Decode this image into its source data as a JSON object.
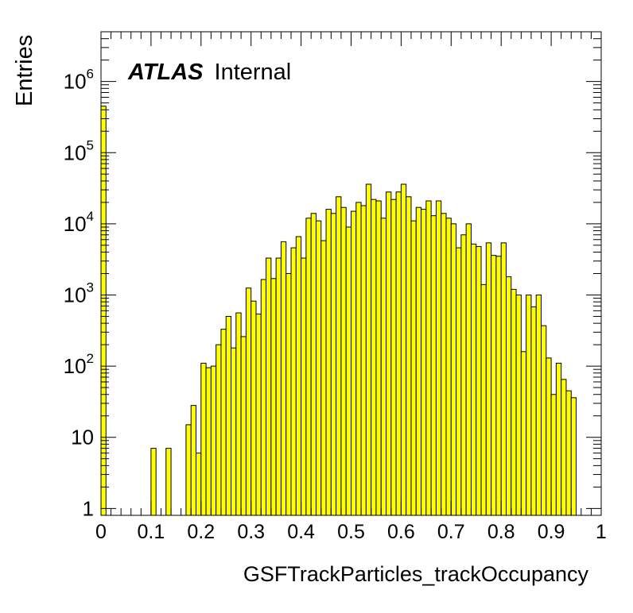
{
  "chart_data": {
    "type": "histogram",
    "title": "",
    "xlabel": "GSFTrackParticles_trackOccupancy",
    "ylabel": "Entries",
    "xlim": [
      0,
      1
    ],
    "ylim": [
      0.8,
      5000000
    ],
    "yscale": "log",
    "grid": false,
    "legend": "none",
    "annotation": {
      "bold": "ATLAS",
      "normal": "Internal"
    },
    "x_ticks": [
      {
        "value": 0,
        "label": "0"
      },
      {
        "value": 0.1,
        "label": "0.1"
      },
      {
        "value": 0.2,
        "label": "0.2"
      },
      {
        "value": 0.3,
        "label": "0.3"
      },
      {
        "value": 0.4,
        "label": "0.4"
      },
      {
        "value": 0.5,
        "label": "0.5"
      },
      {
        "value": 0.6,
        "label": "0.6"
      },
      {
        "value": 0.7,
        "label": "0.7"
      },
      {
        "value": 0.8,
        "label": "0.8"
      },
      {
        "value": 0.9,
        "label": "0.9"
      },
      {
        "value": 1,
        "label": "1"
      }
    ],
    "y_ticks": [
      {
        "value": 1,
        "base": "1",
        "exp": ""
      },
      {
        "value": 10,
        "base": "10",
        "exp": ""
      },
      {
        "value": 100,
        "base": "10",
        "exp": "2"
      },
      {
        "value": 1000,
        "base": "10",
        "exp": "3"
      },
      {
        "value": 10000,
        "base": "10",
        "exp": "4"
      },
      {
        "value": 100000,
        "base": "10",
        "exp": "5"
      },
      {
        "value": 1000000,
        "base": "10",
        "exp": "6"
      }
    ],
    "bin_width": 0.01,
    "bins": [
      [
        0.0,
        450000
      ],
      [
        0.1,
        7
      ],
      [
        0.13,
        7
      ],
      [
        0.17,
        15
      ],
      [
        0.18,
        28
      ],
      [
        0.19,
        6
      ],
      [
        0.2,
        110
      ],
      [
        0.21,
        95
      ],
      [
        0.22,
        100
      ],
      [
        0.23,
        200
      ],
      [
        0.24,
        330
      ],
      [
        0.25,
        500
      ],
      [
        0.26,
        180
      ],
      [
        0.27,
        560
      ],
      [
        0.28,
        260
      ],
      [
        0.29,
        1250
      ],
      [
        0.3,
        820
      ],
      [
        0.31,
        540
      ],
      [
        0.32,
        1650
      ],
      [
        0.33,
        3300
      ],
      [
        0.34,
        1700
      ],
      [
        0.35,
        3300
      ],
      [
        0.36,
        5600
      ],
      [
        0.37,
        2000
      ],
      [
        0.38,
        4600
      ],
      [
        0.39,
        6600
      ],
      [
        0.4,
        3300
      ],
      [
        0.41,
        12000
      ],
      [
        0.42,
        14000
      ],
      [
        0.43,
        11000
      ],
      [
        0.44,
        5800
      ],
      [
        0.45,
        16000
      ],
      [
        0.46,
        14000
      ],
      [
        0.47,
        24000
      ],
      [
        0.48,
        17000
      ],
      [
        0.49,
        9000
      ],
      [
        0.5,
        15000
      ],
      [
        0.51,
        20000
      ],
      [
        0.52,
        18000
      ],
      [
        0.53,
        36000
      ],
      [
        0.54,
        22000
      ],
      [
        0.55,
        21000
      ],
      [
        0.56,
        12000
      ],
      [
        0.57,
        28000
      ],
      [
        0.58,
        22000
      ],
      [
        0.59,
        28000
      ],
      [
        0.6,
        36000
      ],
      [
        0.61,
        24000
      ],
      [
        0.62,
        11000
      ],
      [
        0.63,
        17000
      ],
      [
        0.64,
        16000
      ],
      [
        0.65,
        21000
      ],
      [
        0.66,
        13000
      ],
      [
        0.67,
        21000
      ],
      [
        0.68,
        14000
      ],
      [
        0.69,
        12000
      ],
      [
        0.7,
        10000
      ],
      [
        0.71,
        4600
      ],
      [
        0.72,
        7000
      ],
      [
        0.73,
        10000
      ],
      [
        0.74,
        5200
      ],
      [
        0.75,
        4800
      ],
      [
        0.76,
        1400
      ],
      [
        0.77,
        5400
      ],
      [
        0.78,
        3600
      ],
      [
        0.79,
        3500
      ],
      [
        0.8,
        5400
      ],
      [
        0.81,
        1800
      ],
      [
        0.82,
        1200
      ],
      [
        0.83,
        1000
      ],
      [
        0.84,
        160
      ],
      [
        0.85,
        1000
      ],
      [
        0.86,
        680
      ],
      [
        0.87,
        1000
      ],
      [
        0.88,
        370
      ],
      [
        0.89,
        130
      ],
      [
        0.9,
        40
      ],
      [
        0.91,
        110
      ],
      [
        0.92,
        65
      ],
      [
        0.93,
        45
      ],
      [
        0.94,
        36
      ]
    ]
  }
}
